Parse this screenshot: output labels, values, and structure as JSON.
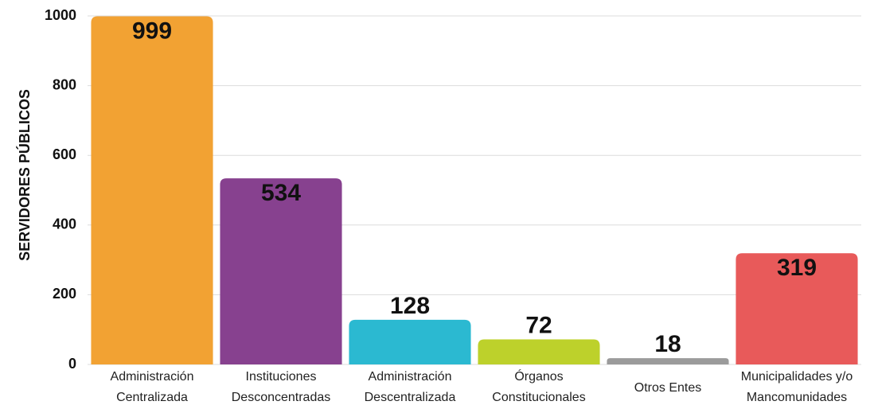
{
  "chart_data": {
    "type": "bar",
    "y_axis_label": "SERVIDORES PÚBLICOS",
    "categories": [
      [
        "Administración",
        "Centralizada"
      ],
      [
        "Instituciones",
        "Desconcentradas"
      ],
      [
        "Administración",
        "Descentralizada"
      ],
      [
        "Órganos",
        "Constitucionales"
      ],
      [
        "Otros Entes"
      ],
      [
        "Municipalidades y/o",
        "Mancomunidades"
      ]
    ],
    "values": [
      999,
      534,
      128,
      72,
      18,
      319
    ],
    "colors": [
      "#f2a233",
      "#87418f",
      "#2bb9d1",
      "#bdd12b",
      "#9b9b9b",
      "#e85a5a"
    ],
    "ylim": [
      0,
      1000
    ],
    "yticks": [
      0,
      200,
      400,
      600,
      800,
      1000
    ],
    "grid": true
  }
}
